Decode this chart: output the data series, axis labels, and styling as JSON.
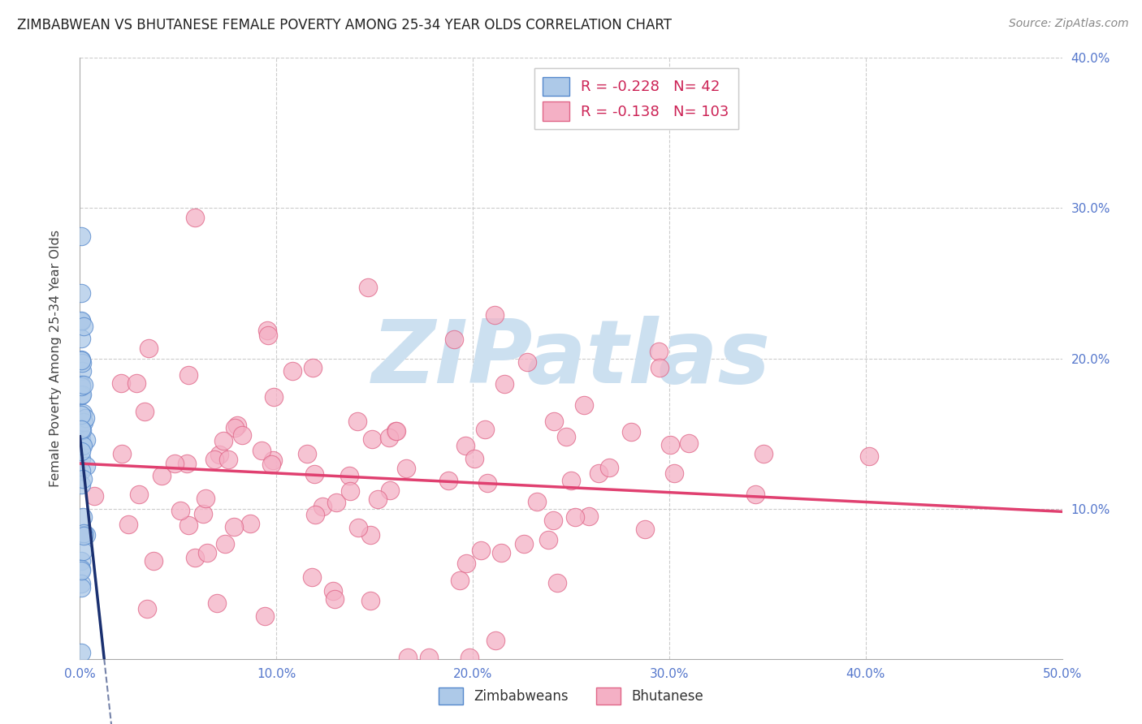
{
  "title": "ZIMBABWEAN VS BHUTANESE FEMALE POVERTY AMONG 25-34 YEAR OLDS CORRELATION CHART",
  "source": "Source: ZipAtlas.com",
  "ylabel": "Female Poverty Among 25-34 Year Olds",
  "xlim": [
    0.0,
    0.5
  ],
  "ylim": [
    0.0,
    0.4
  ],
  "xticks": [
    0.0,
    0.1,
    0.2,
    0.3,
    0.4,
    0.5
  ],
  "yticks": [
    0.0,
    0.1,
    0.2,
    0.3,
    0.4
  ],
  "xtick_labels": [
    "0.0%",
    "10.0%",
    "20.0%",
    "30.0%",
    "40.0%",
    "50.0%"
  ],
  "ytick_labels_right": [
    "",
    "10.0%",
    "20.0%",
    "30.0%",
    "40.0%"
  ],
  "zimbabwean_fill": "#adc9e8",
  "bhutanese_fill": "#f4b0c5",
  "zimbabwean_edge": "#5588cc",
  "bhutanese_edge": "#e06688",
  "trend_zim_color": "#1a3070",
  "trend_bhu_color": "#e04070",
  "R_zimbabwean": -0.228,
  "N_zimbabwean": 42,
  "R_bhutanese": -0.138,
  "N_bhutanese": 103,
  "background_color": "#ffffff",
  "grid_color": "#cccccc",
  "watermark_color": "#cce0f0",
  "tick_color": "#5577cc",
  "title_color": "#222222",
  "ylabel_color": "#444444",
  "legend_R_color": "#cc2255",
  "legend_N_color": "#5577cc",
  "bhu_trend_y0": 0.13,
  "bhu_trend_y1": 0.098,
  "zim_trend_y0": 0.148,
  "zim_trend_slope": -12.0
}
